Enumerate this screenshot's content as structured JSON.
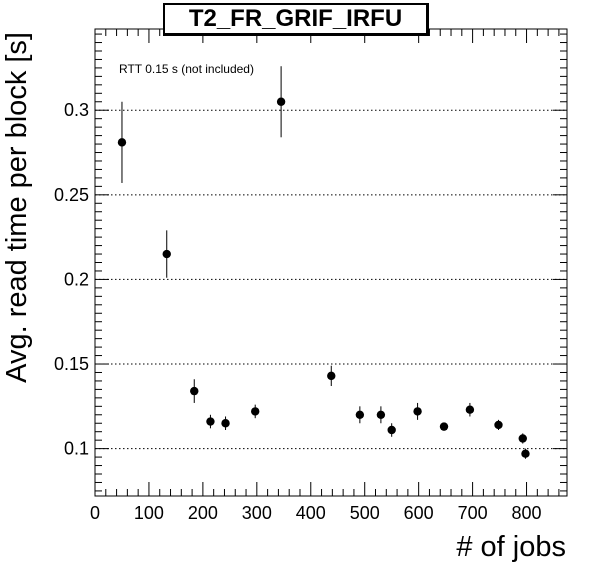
{
  "chart_data": {
    "type": "scatter",
    "title": "T2_FR_GRIF_IRFU",
    "xlabel": "# of jobs",
    "ylabel": "Avg. read time per block [s]",
    "annotation": "RTT 0.15 s (not included)",
    "xlim": [
      0,
      875
    ],
    "ylim": [
      0.072,
      0.348
    ],
    "x_ticks": [
      0,
      100,
      200,
      300,
      400,
      500,
      600,
      700,
      800
    ],
    "x_tick_labels": [
      "0",
      "100",
      "200",
      "300",
      "400",
      "500",
      "600",
      "700",
      "800"
    ],
    "y_ticks": [
      0.1,
      0.15,
      0.2,
      0.25,
      0.3
    ],
    "y_tick_labels": [
      "0.1",
      "0.15",
      "0.2",
      "0.25",
      "0.3"
    ],
    "grid": "y-dotted",
    "points": [
      {
        "x": 50,
        "y": 0.281,
        "err": 0.024
      },
      {
        "x": 133,
        "y": 0.215,
        "err": 0.014
      },
      {
        "x": 184,
        "y": 0.134,
        "err": 0.007
      },
      {
        "x": 214,
        "y": 0.116,
        "err": 0.004
      },
      {
        "x": 242,
        "y": 0.115,
        "err": 0.004
      },
      {
        "x": 297,
        "y": 0.122,
        "err": 0.004
      },
      {
        "x": 345,
        "y": 0.305,
        "err": 0.021
      },
      {
        "x": 438,
        "y": 0.143,
        "err": 0.006
      },
      {
        "x": 491,
        "y": 0.12,
        "err": 0.005
      },
      {
        "x": 530,
        "y": 0.12,
        "err": 0.005
      },
      {
        "x": 550,
        "y": 0.111,
        "err": 0.004
      },
      {
        "x": 598,
        "y": 0.122,
        "err": 0.005
      },
      {
        "x": 647,
        "y": 0.113,
        "err": 0.002
      },
      {
        "x": 695,
        "y": 0.123,
        "err": 0.004
      },
      {
        "x": 748,
        "y": 0.114,
        "err": 0.003
      },
      {
        "x": 793,
        "y": 0.106,
        "err": 0.003
      },
      {
        "x": 798,
        "y": 0.097,
        "err": 0.003
      }
    ]
  }
}
